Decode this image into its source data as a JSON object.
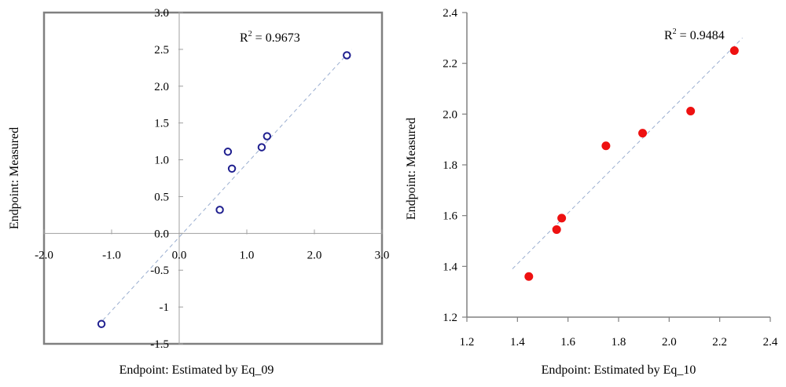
{
  "chart_data": [
    {
      "type": "scatter",
      "xlabel": "Endpoint: Estimated by Eq_09",
      "ylabel": "Endpoint: Measured",
      "annotation": {
        "label": "R",
        "superscript": "2",
        "value": " = 0.9673"
      },
      "xlim": [
        -2.0,
        3.0
      ],
      "ylim": [
        -1.5,
        3.0
      ],
      "x_ticks": [
        "-2.0",
        "-1.0",
        "0.0",
        "1.0",
        "2.0",
        "3.0"
      ],
      "y_ticks": [
        "-1.5",
        "-1",
        "-0.5",
        "0.0",
        "0.5",
        "1.0",
        "1.5",
        "2.0",
        "2.5",
        "3.0"
      ],
      "x_tick_values": [
        -2,
        -1,
        0,
        1,
        2,
        3
      ],
      "y_tick_values": [
        -1.5,
        -1,
        -0.5,
        0,
        0.5,
        1,
        1.5,
        2,
        2.5,
        3
      ],
      "trendline": [
        [
          -1.2,
          -1.25
        ],
        [
          2.55,
          2.5
        ]
      ],
      "marker": "hollow-circle",
      "marker_color": "#1f1f8f",
      "trendline_color": "#9aaed0",
      "points": [
        {
          "x": -1.15,
          "y": -1.23
        },
        {
          "x": 0.6,
          "y": 0.32
        },
        {
          "x": 0.72,
          "y": 1.11
        },
        {
          "x": 0.78,
          "y": 0.88
        },
        {
          "x": 1.22,
          "y": 1.17
        },
        {
          "x": 1.3,
          "y": 1.32
        },
        {
          "x": 2.48,
          "y": 2.42
        }
      ]
    },
    {
      "type": "scatter",
      "xlabel": "Endpoint: Estimated by Eq_10",
      "ylabel": "Endpoint: Measured",
      "annotation": {
        "label": "R",
        "superscript": "2",
        "value": " = 0.9484"
      },
      "xlim": [
        1.2,
        2.4
      ],
      "ylim": [
        1.2,
        2.4
      ],
      "x_ticks": [
        "1.2",
        "1.4",
        "1.6",
        "1.8",
        "2.0",
        "2.2",
        "2.4"
      ],
      "y_ticks": [
        "1.2",
        "1.4",
        "1.6",
        "1.8",
        "2.0",
        "2.2",
        "2.4"
      ],
      "x_tick_values": [
        1.2,
        1.4,
        1.6,
        1.8,
        2.0,
        2.2,
        2.4
      ],
      "y_tick_values": [
        1.2,
        1.4,
        1.6,
        1.8,
        2.0,
        2.2,
        2.4
      ],
      "trendline": [
        [
          1.38,
          1.39
        ],
        [
          2.29,
          2.3
        ]
      ],
      "marker": "filled-circle",
      "marker_color": "#ee1111",
      "trendline_color": "#9aaed0",
      "points": [
        {
          "x": 1.445,
          "y": 1.36
        },
        {
          "x": 1.555,
          "y": 1.545
        },
        {
          "x": 1.575,
          "y": 1.59
        },
        {
          "x": 1.75,
          "y": 1.875
        },
        {
          "x": 1.895,
          "y": 1.925
        },
        {
          "x": 2.085,
          "y": 2.012
        },
        {
          "x": 2.258,
          "y": 2.25
        }
      ]
    }
  ]
}
